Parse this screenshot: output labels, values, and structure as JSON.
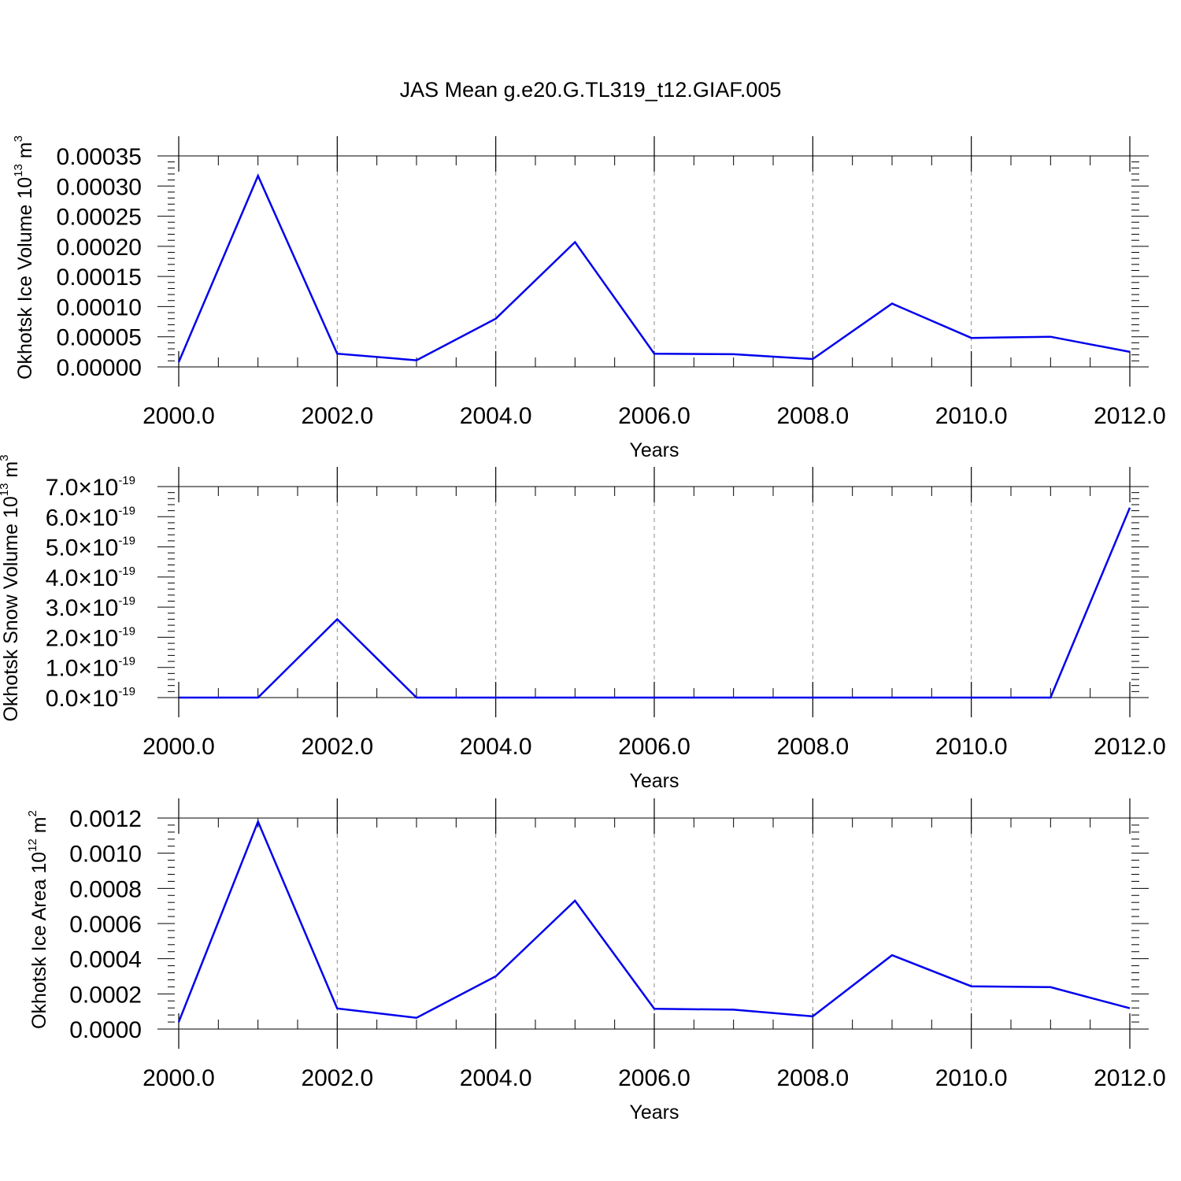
{
  "figure": {
    "title": "JAS Mean g.e20.G.TL319_t12.GIAF.005"
  },
  "chart_data": [
    {
      "type": "line",
      "title": "",
      "xlabel": "Years",
      "ylabel": "Okhotsk Ice Volume 10",
      "ylabel_exp": "13",
      "ylabel_unit": " m",
      "ylabel_unit_exp": "3",
      "xlim": [
        2000,
        2012
      ],
      "ylim": [
        0,
        0.00035
      ],
      "xticks": [
        2000,
        2002,
        2004,
        2006,
        2008,
        2010,
        2012
      ],
      "xtick_labels": [
        "2000.0",
        "2002.0",
        "2004.0",
        "2006.0",
        "2008.0",
        "2010.0",
        "2012.0"
      ],
      "yticks": [
        0,
        5e-05,
        0.0001,
        0.00015,
        0.0002,
        0.00025,
        0.0003,
        0.00035
      ],
      "ytick_labels": [
        "0.00000",
        "0.00005",
        "0.00010",
        "0.00015",
        "0.00020",
        "0.00025",
        "0.00030",
        "0.00035"
      ],
      "grid": "vertical dashed at major x ticks",
      "legend": "none",
      "series": [
        {
          "color": "#0000ee",
          "x": [
            2000,
            2001,
            2002,
            2003,
            2004,
            2005,
            2006,
            2007,
            2008,
            2009,
            2010,
            2011,
            2012
          ],
          "y": [
            8e-06,
            0.000317,
            2.2e-05,
            1.1e-05,
            8e-05,
            0.000207,
            2.2e-05,
            2.1e-05,
            1.3e-05,
            0.000105,
            4.8e-05,
            5e-05,
            2.5e-05
          ]
        }
      ]
    },
    {
      "type": "line",
      "title": "",
      "xlabel": "Years",
      "ylabel": "Okhotsk Snow Volume 10",
      "ylabel_exp": "13",
      "ylabel_unit": " m",
      "ylabel_unit_exp": "3",
      "xlim": [
        2000,
        2012
      ],
      "ylim": [
        0,
        7e-19
      ],
      "xticks": [
        2000,
        2002,
        2004,
        2006,
        2008,
        2010,
        2012
      ],
      "xtick_labels": [
        "2000.0",
        "2002.0",
        "2004.0",
        "2006.0",
        "2008.0",
        "2010.0",
        "2012.0"
      ],
      "yticks": [
        0,
        1e-19,
        2e-19,
        3e-19,
        4e-19,
        5e-19,
        6e-19,
        7e-19
      ],
      "ytick_labels": [
        "0.0",
        "1.0",
        "2.0",
        "3.0",
        "4.0",
        "5.0",
        "6.0",
        "7.0"
      ],
      "ytick_suffix": "×10",
      "ytick_exp": "-19",
      "grid": "vertical dashed at major x ticks",
      "legend": "none",
      "series": [
        {
          "color": "#0000ee",
          "x": [
            2000,
            2001,
            2002,
            2003,
            2004,
            2005,
            2006,
            2007,
            2008,
            2009,
            2010,
            2011,
            2012
          ],
          "y": [
            0,
            0,
            2.6e-19,
            0,
            0,
            0,
            0,
            0,
            0,
            0,
            0,
            0,
            6.3e-19
          ]
        }
      ]
    },
    {
      "type": "line",
      "title": "",
      "xlabel": "Years",
      "ylabel": "Okhotsk Ice Area 10",
      "ylabel_exp": "12",
      "ylabel_unit": " m",
      "ylabel_unit_exp": "2",
      "xlim": [
        2000,
        2012
      ],
      "ylim": [
        0,
        0.0012
      ],
      "xticks": [
        2000,
        2002,
        2004,
        2006,
        2008,
        2010,
        2012
      ],
      "xtick_labels": [
        "2000.0",
        "2002.0",
        "2004.0",
        "2006.0",
        "2008.0",
        "2010.0",
        "2012.0"
      ],
      "yticks": [
        0,
        0.0002,
        0.0004,
        0.0006,
        0.0008,
        0.001,
        0.0012
      ],
      "ytick_labels": [
        "0.0000",
        "0.0002",
        "0.0004",
        "0.0006",
        "0.0008",
        "0.0010",
        "0.0012"
      ],
      "grid": "vertical dashed at major x ticks",
      "legend": "none",
      "series": [
        {
          "color": "#0000ee",
          "x": [
            2000,
            2001,
            2002,
            2003,
            2004,
            2005,
            2006,
            2007,
            2008,
            2009,
            2010,
            2011,
            2012
          ],
          "y": [
            4e-05,
            0.00118,
            0.000117,
            6.4e-05,
            0.0003,
            0.00073,
            0.000115,
            0.00011,
            7.2e-05,
            0.00042,
            0.000243,
            0.000238,
            0.000118
          ]
        }
      ]
    }
  ]
}
